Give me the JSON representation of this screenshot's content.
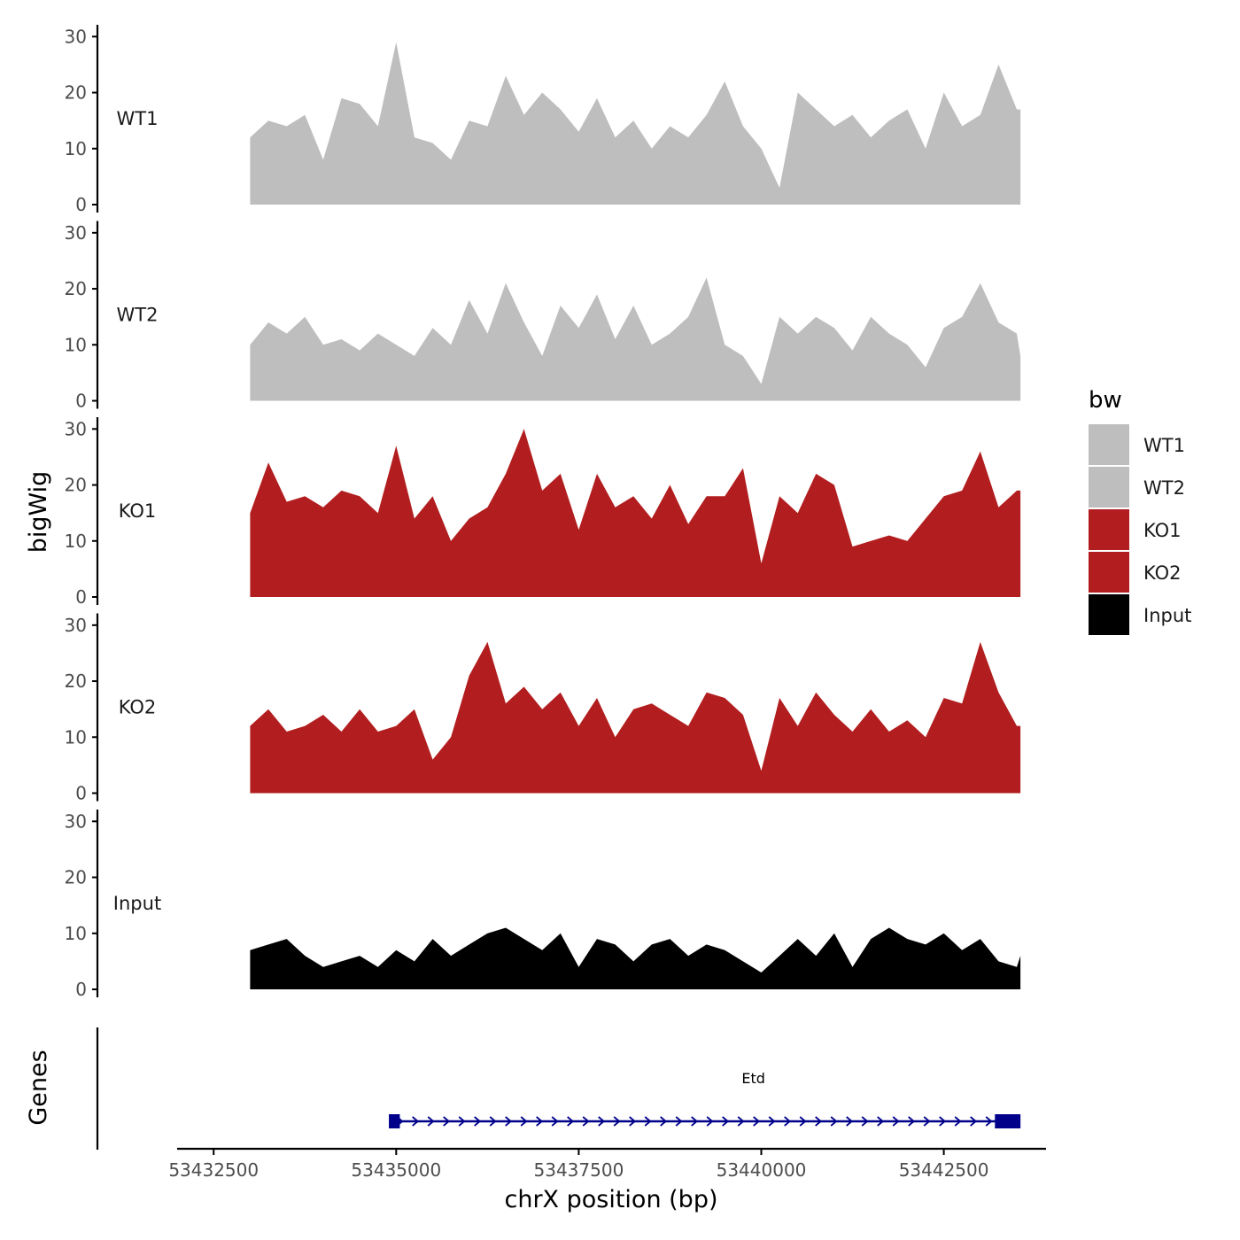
{
  "chart_data": {
    "type": "area",
    "title": "",
    "xlabel": "chrX position (bp)",
    "ylabel": "bigWig",
    "genes_label": "Genes",
    "xlim": [
      53432000,
      53443900
    ],
    "ylim": [
      0,
      31
    ],
    "x_ticks": [
      53432500,
      53435000,
      53437500,
      53440000,
      53442500
    ],
    "x_tick_labels": [
      "53432500",
      "53435000",
      "53437500",
      "53440000",
      "53442500"
    ],
    "y_ticks": [
      0,
      10,
      20,
      30
    ],
    "y_tick_labels": [
      "0",
      "10",
      "20",
      "30"
    ],
    "legend": {
      "title": "bw",
      "placement": "right",
      "entries": [
        {
          "label": "WT1",
          "color": "#bebebe"
        },
        {
          "label": "WT2",
          "color": "#bebebe"
        },
        {
          "label": "KO1",
          "color": "#b21e1f"
        },
        {
          "label": "KO2",
          "color": "#b21e1f"
        },
        {
          "label": "Input",
          "color": "#000000"
        }
      ]
    },
    "x": [
      53433000,
      53433250,
      53433500,
      53433750,
      53434000,
      53434250,
      53434500,
      53434750,
      53435000,
      53435250,
      53435500,
      53435750,
      53436000,
      53436250,
      53436500,
      53436750,
      53437000,
      53437250,
      53437500,
      53437750,
      53438000,
      53438250,
      53438500,
      53438750,
      53439000,
      53439250,
      53439500,
      53439750,
      53440000,
      53440250,
      53440500,
      53440750,
      53441000,
      53441250,
      53441500,
      53441750,
      53442000,
      53442250,
      53442500,
      53442750,
      53443000,
      53443250,
      53443500,
      53443550
    ],
    "series": [
      {
        "name": "WT1",
        "color": "#bebebe",
        "values": [
          12,
          15,
          14,
          16,
          8,
          19,
          18,
          14,
          29,
          12,
          11,
          8,
          15,
          14,
          23,
          16,
          20,
          17,
          13,
          19,
          12,
          15,
          10,
          14,
          12,
          16,
          22,
          14,
          10,
          3,
          20,
          17,
          14,
          16,
          12,
          15,
          17,
          10,
          20,
          14,
          16,
          25,
          17,
          17
        ]
      },
      {
        "name": "WT2",
        "color": "#bebebe",
        "values": [
          10,
          14,
          12,
          15,
          10,
          11,
          9,
          12,
          10,
          8,
          13,
          10,
          18,
          12,
          21,
          14,
          8,
          17,
          13,
          19,
          11,
          17,
          10,
          12,
          15,
          22,
          10,
          8,
          3,
          15,
          12,
          15,
          13,
          9,
          15,
          12,
          10,
          6,
          13,
          15,
          21,
          14,
          12,
          8
        ]
      },
      {
        "name": "KO1",
        "color": "#b21e1f",
        "values": [
          15,
          24,
          17,
          18,
          16,
          19,
          18,
          15,
          27,
          14,
          18,
          10,
          14,
          16,
          22,
          30,
          19,
          22,
          12,
          22,
          16,
          18,
          14,
          20,
          13,
          18,
          18,
          23,
          6,
          18,
          15,
          22,
          20,
          9,
          10,
          11,
          10,
          14,
          18,
          19,
          26,
          16,
          19,
          19
        ]
      },
      {
        "name": "KO2",
        "color": "#b21e1f",
        "values": [
          12,
          15,
          11,
          12,
          14,
          11,
          15,
          11,
          12,
          15,
          6,
          10,
          21,
          27,
          16,
          19,
          15,
          18,
          12,
          17,
          10,
          15,
          16,
          14,
          12,
          18,
          17,
          14,
          4,
          17,
          12,
          18,
          14,
          11,
          15,
          11,
          13,
          10,
          17,
          16,
          27,
          18,
          12,
          12
        ]
      },
      {
        "name": "Input",
        "color": "#000000",
        "values": [
          7,
          8,
          9,
          6,
          4,
          5,
          6,
          4,
          7,
          5,
          9,
          6,
          8,
          10,
          11,
          9,
          7,
          10,
          4,
          9,
          8,
          5,
          8,
          9,
          6,
          8,
          7,
          5,
          3,
          6,
          9,
          6,
          10,
          4,
          9,
          11,
          9,
          8,
          10,
          7,
          9,
          5,
          4,
          6
        ]
      }
    ],
    "genes": [
      {
        "name": "Etd",
        "start": 53434950,
        "end": 53443500,
        "strand": "+",
        "exons": [
          [
            53434900,
            53435050
          ],
          [
            53443200,
            53443550
          ]
        ]
      }
    ]
  }
}
